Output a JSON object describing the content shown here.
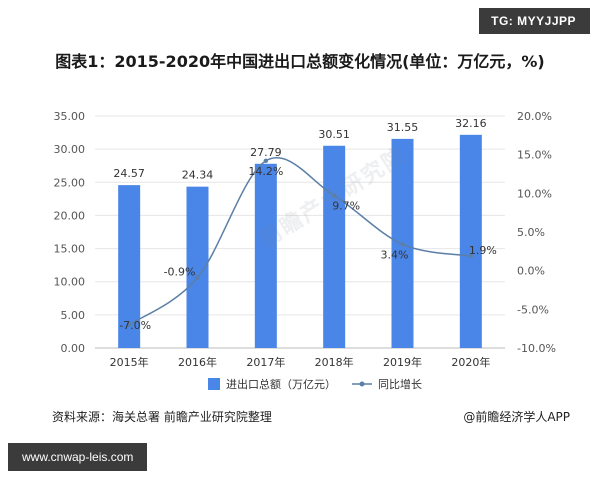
{
  "badge_top": "TG: MYYJJPP",
  "title": "图表1：2015-2020年中国进出口总额变化情况(单位：万亿元，%)",
  "source": "资料来源：海关总署 前瞻产业研究院整理",
  "credit": "@前瞻经济学人APP",
  "badge_bottom": "www.cnwap-leis.com",
  "watermark": "前瞻产业研究院",
  "colors": {
    "bar": "#4a86e8",
    "line": "#5b7fa6",
    "axis_text": "#555555"
  },
  "chart_data": {
    "type": "bar",
    "categories": [
      "2015年",
      "2016年",
      "2017年",
      "2018年",
      "2019年",
      "2020年"
    ],
    "series": [
      {
        "name": "进出口总额（万亿元）",
        "type": "bar",
        "axis": "left",
        "values": [
          24.57,
          24.34,
          27.79,
          30.51,
          31.55,
          32.16
        ],
        "labels": [
          "24.57",
          "24.34",
          "27.79",
          "30.51",
          "31.55",
          "32.16"
        ]
      },
      {
        "name": "同比增长",
        "type": "line",
        "axis": "right",
        "values": [
          -7.0,
          -0.9,
          14.2,
          9.7,
          3.4,
          1.9
        ],
        "labels": [
          "-7.0%",
          "-0.9%",
          "14.2%",
          "9.7%",
          "3.4%",
          "1.9%"
        ]
      }
    ],
    "y_left": {
      "min": 0,
      "max": 35,
      "ticks": [
        "0.00",
        "5.00",
        "10.00",
        "15.00",
        "20.00",
        "25.00",
        "30.00",
        "35.00"
      ]
    },
    "y_right": {
      "min": -10,
      "max": 20,
      "ticks": [
        "-10.0%",
        "-5.0%",
        "0.0%",
        "5.0%",
        "10.0%",
        "15.0%",
        "20.0%"
      ]
    },
    "grid": true,
    "legend_position": "bottom"
  }
}
